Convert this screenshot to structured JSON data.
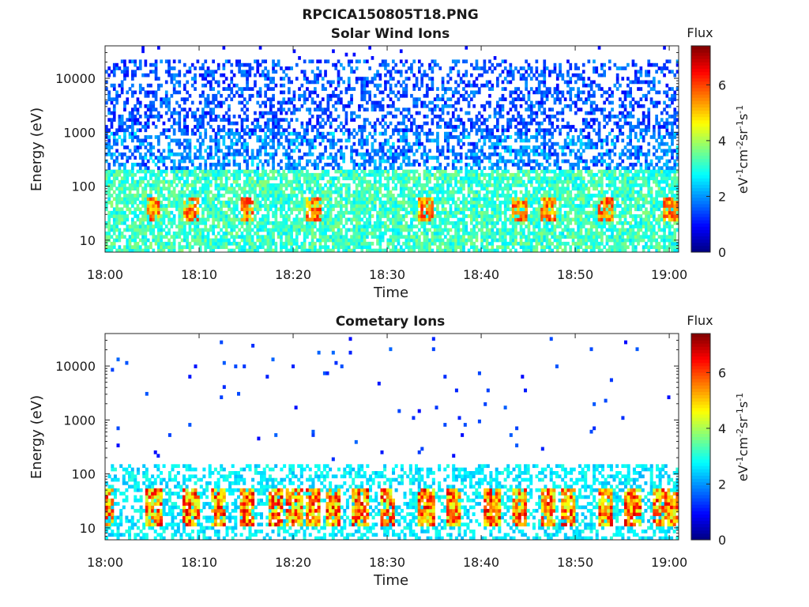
{
  "figure": {
    "title": "RPCICA150805T18.PNG"
  },
  "chart_data": [
    {
      "type": "heatmap",
      "title": "Solar Wind Ions",
      "xlabel": "Time",
      "ylabel": "Energy (eV)",
      "x_ticks": [
        "18:00",
        "18:10",
        "18:20",
        "18:30",
        "18:40",
        "18:50",
        "19:00"
      ],
      "x_range": [
        "18:00",
        "19:01"
      ],
      "y_scale": "log",
      "y_ticks": [
        "10",
        "100",
        "1000",
        "10000"
      ],
      "y_range": [
        6,
        40000
      ],
      "colorbar": {
        "label": "Flux",
        "unit": "eV-1cm-2sr-1s-1",
        "ticks": [
          "0",
          "2",
          "4",
          "6"
        ],
        "range": [
          0,
          7.4
        ],
        "colormap": "jet"
      },
      "features": {
        "high_energy_band_eV": [
          300,
          20000
        ],
        "high_energy_flux": 1.5,
        "low_energy_band_eV": [
          6,
          200
        ],
        "low_energy_flux": 3.2,
        "peak_energy_eV": 35,
        "peak_flux": 5.5,
        "peak_times": [
          "18:05",
          "18:09",
          "18:15",
          "18:22",
          "18:34",
          "18:44",
          "18:47",
          "18:53",
          "19:00"
        ]
      }
    },
    {
      "type": "heatmap",
      "title": "Cometary Ions",
      "xlabel": "Time",
      "ylabel": "Energy (eV)",
      "x_ticks": [
        "18:00",
        "18:10",
        "18:20",
        "18:30",
        "18:40",
        "18:50",
        "19:00"
      ],
      "x_range": [
        "18:00",
        "19:01"
      ],
      "y_scale": "log",
      "y_ticks": [
        "10",
        "100",
        "1000",
        "10000"
      ],
      "y_range": [
        6,
        40000
      ],
      "colorbar": {
        "label": "Flux",
        "unit": "eV-1cm-2sr-1s-1",
        "ticks": [
          "0",
          "2",
          "4",
          "6"
        ],
        "range": [
          0,
          7.4
        ],
        "colormap": "jet"
      },
      "features": {
        "background_band_eV": [
          6,
          150
        ],
        "background_flux": 2.8,
        "sparse_high_energy_flux": 1.2,
        "burst_energy_eV": [
          10,
          50
        ],
        "burst_peak_flux": 6.8,
        "burst_times": [
          "18:00",
          "18:05",
          "18:09",
          "18:12",
          "18:15",
          "18:18",
          "18:20",
          "18:22",
          "18:24",
          "18:27",
          "18:30",
          "18:34",
          "18:37",
          "18:41",
          "18:44",
          "18:47",
          "18:49",
          "18:53",
          "18:56",
          "18:59",
          "19:00"
        ]
      }
    }
  ]
}
